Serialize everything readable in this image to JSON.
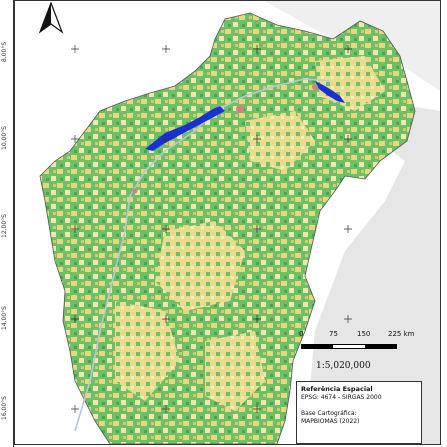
{
  "map": {
    "latitude_labels": [
      "8,00°S",
      "10,00°S",
      "12,00°S",
      "14,00°S",
      "16,00°S"
    ],
    "scale": {
      "ticks": [
        "0",
        "75",
        "150",
        "225 km"
      ],
      "ratio": "1:5,020,000"
    },
    "legend": {
      "title": "Referência Espacial",
      "crs": "EPSG: 4674 - SIRGAS 2000",
      "base_label": "Base Cartográfica:",
      "base_value": "MAPBIOMAS (2022)"
    },
    "north_arrow_icon": "north-arrow-icon",
    "colors": {
      "vegetation": "#5cb85c",
      "agriculture": "#e8d87a",
      "pasture": "#f2e6a8",
      "urban": "#d08080",
      "water": "#1a2fd6",
      "background": "#ffffff",
      "outside": "#e4e4e4"
    }
  }
}
